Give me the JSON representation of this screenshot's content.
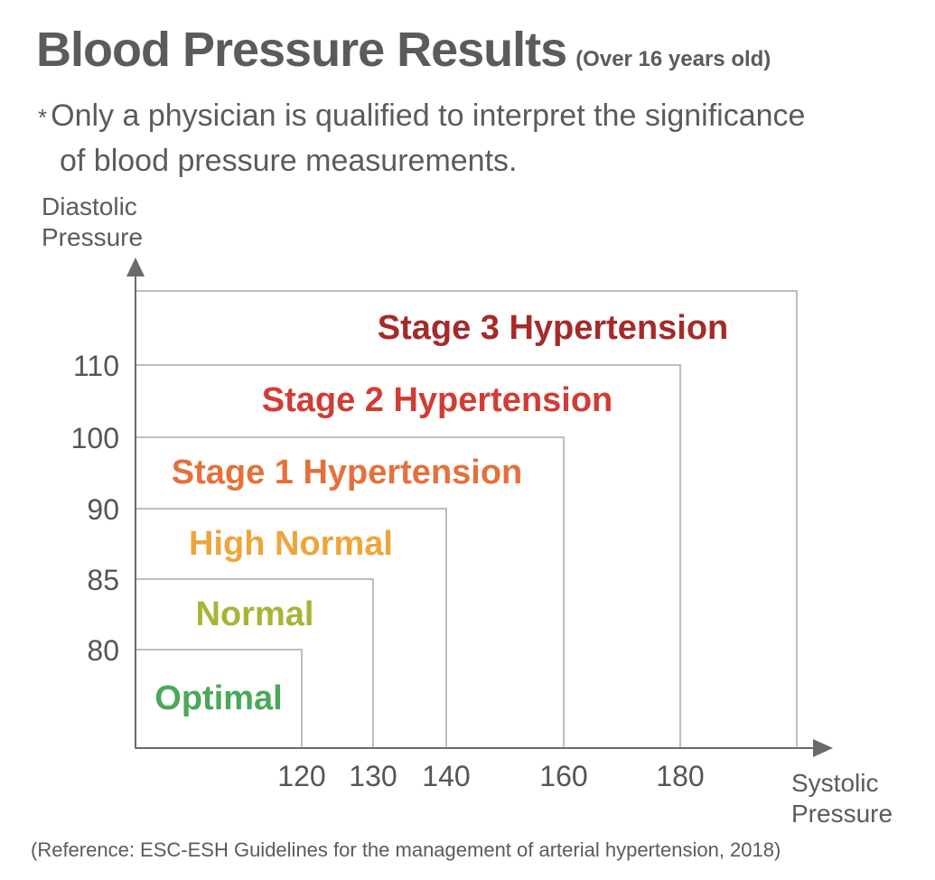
{
  "header": {
    "title": "Blood Pressure Results",
    "subtitle": "(Over 16 years old)"
  },
  "note": {
    "star": "*",
    "line1": "Only a physician is qualified to interpret the significance",
    "line2": "of blood pressure measurements."
  },
  "axes": {
    "y_label_line1": "Diastolic",
    "y_label_line2": "Pressure",
    "x_label_line1": "Systolic",
    "x_label_line2": "Pressure"
  },
  "reference": "(Reference: ESC-ESH Guidelines for the management of arterial hypertension, 2018)",
  "categories": [
    {
      "name": "Optimal",
      "systolic_max": "120",
      "diastolic_max": "80",
      "color": "#4aa85a"
    },
    {
      "name": "Normal",
      "systolic_max": "130",
      "diastolic_max": "85",
      "color": "#a8b436"
    },
    {
      "name": "High Normal",
      "systolic_max": "140",
      "diastolic_max": "90",
      "color": "#eda53a"
    },
    {
      "name": "Stage 1 Hypertension",
      "systolic_max": "160",
      "diastolic_max": "100",
      "color": "#e5703b"
    },
    {
      "name": "Stage 2 Hypertension",
      "systolic_max": "180",
      "diastolic_max": "110",
      "color": "#d13c34"
    },
    {
      "name": "Stage 3 Hypertension",
      "systolic_max": "",
      "diastolic_max": "",
      "color": "#a52a2a"
    }
  ],
  "colors": {
    "text": "#5b5b5b",
    "box_line": "#a8a8a8",
    "axis": "#6a6a6a"
  }
}
